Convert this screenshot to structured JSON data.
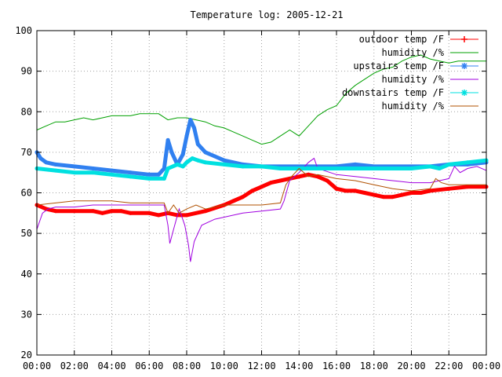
{
  "chart_data": {
    "type": "line",
    "title": "Temperature log: 2005-12-21",
    "xlabel": "",
    "ylabel": "",
    "x_ticks": [
      "00:00",
      "02:00",
      "04:00",
      "06:00",
      "08:00",
      "10:00",
      "12:00",
      "14:00",
      "16:00",
      "18:00",
      "20:00",
      "22:00",
      "00:00"
    ],
    "xlim": [
      0,
      24
    ],
    "ylim": [
      20,
      100
    ],
    "y_ticks": [
      20,
      30,
      40,
      50,
      60,
      70,
      80,
      90,
      100
    ],
    "grid": true,
    "legend_position": "top-right",
    "series": [
      {
        "name": "outdoor temp /F",
        "color": "#ff0000",
        "style": "thick-points",
        "points": [
          [
            0,
            57
          ],
          [
            0.5,
            56
          ],
          [
            1,
            55.5
          ],
          [
            2,
            55.5
          ],
          [
            3,
            55.5
          ],
          [
            3.5,
            55
          ],
          [
            4,
            55.5
          ],
          [
            4.5,
            55.5
          ],
          [
            5,
            55
          ],
          [
            6,
            55
          ],
          [
            6.5,
            54.5
          ],
          [
            7,
            55
          ],
          [
            7.5,
            54.5
          ],
          [
            8,
            54.5
          ],
          [
            9,
            55.5
          ],
          [
            10,
            57
          ],
          [
            10.5,
            58
          ],
          [
            11,
            59
          ],
          [
            11.5,
            60.5
          ],
          [
            12,
            61.5
          ],
          [
            12.5,
            62.5
          ],
          [
            13,
            63
          ],
          [
            13.5,
            63.5
          ],
          [
            14,
            64
          ],
          [
            14.5,
            64.5
          ],
          [
            15,
            64
          ],
          [
            15.5,
            63
          ],
          [
            16,
            61
          ],
          [
            16.5,
            60.5
          ],
          [
            17,
            60.5
          ],
          [
            17.5,
            60
          ],
          [
            18,
            59.5
          ],
          [
            18.5,
            59
          ],
          [
            19,
            59
          ],
          [
            19.5,
            59.5
          ],
          [
            20,
            60
          ],
          [
            20.5,
            60
          ],
          [
            21,
            60.5
          ],
          [
            22,
            61
          ],
          [
            23,
            61.5
          ],
          [
            24,
            61.5
          ]
        ]
      },
      {
        "name": "humidity /%",
        "color": "#00a000",
        "style": "line",
        "points": [
          [
            0,
            75.5
          ],
          [
            0.5,
            76.5
          ],
          [
            1,
            77.5
          ],
          [
            1.5,
            77.5
          ],
          [
            2,
            78
          ],
          [
            2.5,
            78.5
          ],
          [
            3,
            78
          ],
          [
            3.5,
            78.5
          ],
          [
            4,
            79
          ],
          [
            4.5,
            79
          ],
          [
            5,
            79
          ],
          [
            5.5,
            79.5
          ],
          [
            6,
            79.5
          ],
          [
            6.5,
            79.5
          ],
          [
            7,
            78
          ],
          [
            7.5,
            78.5
          ],
          [
            8,
            78.5
          ],
          [
            8.5,
            78
          ],
          [
            9,
            77.5
          ],
          [
            9.5,
            76.5
          ],
          [
            10,
            76
          ],
          [
            10.5,
            75
          ],
          [
            11,
            74
          ],
          [
            11.5,
            73
          ],
          [
            12,
            72
          ],
          [
            12.5,
            72.5
          ],
          [
            13,
            74
          ],
          [
            13.5,
            75.5
          ],
          [
            14,
            74
          ],
          [
            14.5,
            76.5
          ],
          [
            15,
            79
          ],
          [
            15.5,
            80.5
          ],
          [
            16,
            81.5
          ],
          [
            16.5,
            84.5
          ],
          [
            17,
            86.5
          ],
          [
            17.5,
            88
          ],
          [
            18,
            89.5
          ],
          [
            18.5,
            90.5
          ],
          [
            19,
            91
          ],
          [
            19.5,
            92.5
          ],
          [
            20,
            93.5
          ],
          [
            20.5,
            94
          ],
          [
            21,
            93
          ],
          [
            21.5,
            92.5
          ],
          [
            22,
            92
          ],
          [
            22.5,
            92.5
          ],
          [
            23,
            92.5
          ],
          [
            24,
            92.5
          ]
        ]
      },
      {
        "name": "upstairs temp /F",
        "color": "#3080f0",
        "style": "thick-points",
        "points": [
          [
            0,
            70
          ],
          [
            0.2,
            68.5
          ],
          [
            0.5,
            67.5
          ],
          [
            1,
            67
          ],
          [
            2,
            66.5
          ],
          [
            3,
            66
          ],
          [
            4,
            65.5
          ],
          [
            5,
            65
          ],
          [
            6,
            64.5
          ],
          [
            6.5,
            64.5
          ],
          [
            6.8,
            66
          ],
          [
            7,
            73
          ],
          [
            7.2,
            70
          ],
          [
            7.5,
            67
          ],
          [
            7.8,
            69.5
          ],
          [
            8,
            74
          ],
          [
            8.2,
            78
          ],
          [
            8.4,
            76
          ],
          [
            8.6,
            72
          ],
          [
            9,
            70
          ],
          [
            9.5,
            69
          ],
          [
            10,
            68
          ],
          [
            11,
            67
          ],
          [
            12,
            66.5
          ],
          [
            13,
            66.5
          ],
          [
            14,
            66.5
          ],
          [
            15,
            66.5
          ],
          [
            16,
            66.5
          ],
          [
            17,
            67
          ],
          [
            18,
            66.5
          ],
          [
            19,
            66.5
          ],
          [
            20,
            66.5
          ],
          [
            21,
            66.5
          ],
          [
            22,
            67
          ],
          [
            23,
            67
          ],
          [
            24,
            67.5
          ]
        ]
      },
      {
        "name": "humidity /%",
        "color": "#a000e0",
        "style": "line",
        "points": [
          [
            0,
            51
          ],
          [
            0.3,
            55
          ],
          [
            0.6,
            56
          ],
          [
            1,
            56.5
          ],
          [
            2,
            56.5
          ],
          [
            3,
            57
          ],
          [
            4,
            57
          ],
          [
            5,
            57
          ],
          [
            6,
            57
          ],
          [
            6.8,
            57
          ],
          [
            7,
            52
          ],
          [
            7.1,
            47.5
          ],
          [
            7.3,
            51
          ],
          [
            7.6,
            56
          ],
          [
            7.9,
            52
          ],
          [
            8.1,
            47
          ],
          [
            8.2,
            43
          ],
          [
            8.4,
            48
          ],
          [
            8.8,
            52
          ],
          [
            9.5,
            53.5
          ],
          [
            10,
            54
          ],
          [
            11,
            55
          ],
          [
            12,
            55.5
          ],
          [
            13,
            56
          ],
          [
            13.2,
            58
          ],
          [
            13.5,
            63
          ],
          [
            14,
            65
          ],
          [
            14.5,
            67.5
          ],
          [
            14.8,
            68.5
          ],
          [
            15,
            66
          ],
          [
            16,
            64.5
          ],
          [
            17,
            64
          ],
          [
            18,
            63.5
          ],
          [
            19,
            63
          ],
          [
            20,
            62.5
          ],
          [
            21,
            62.5
          ],
          [
            21.5,
            63
          ],
          [
            22,
            63.5
          ],
          [
            22.3,
            66.5
          ],
          [
            22.6,
            65
          ],
          [
            23,
            66
          ],
          [
            23.5,
            66.5
          ],
          [
            24,
            65.5
          ]
        ]
      },
      {
        "name": "downstairs temp /F",
        "color": "#00e0e0",
        "style": "thick-points",
        "points": [
          [
            0,
            66
          ],
          [
            1,
            65.5
          ],
          [
            2,
            65
          ],
          [
            3,
            65
          ],
          [
            4,
            64.5
          ],
          [
            5,
            64
          ],
          [
            6,
            63.5
          ],
          [
            6.8,
            63.5
          ],
          [
            7,
            66
          ],
          [
            7.5,
            67
          ],
          [
            7.8,
            66.5
          ],
          [
            8,
            67.5
          ],
          [
            8.3,
            68.5
          ],
          [
            8.6,
            68
          ],
          [
            9,
            67.5
          ],
          [
            10,
            67
          ],
          [
            11,
            66.5
          ],
          [
            12,
            66.5
          ],
          [
            13,
            66
          ],
          [
            14,
            66
          ],
          [
            15,
            66
          ],
          [
            16,
            66
          ],
          [
            17,
            66
          ],
          [
            18,
            66
          ],
          [
            19,
            66
          ],
          [
            20,
            66
          ],
          [
            21,
            66.5
          ],
          [
            21.5,
            66
          ],
          [
            22,
            67
          ],
          [
            23,
            67.5
          ],
          [
            24,
            68
          ]
        ]
      },
      {
        "name": "humidity /%",
        "color": "#b05000",
        "style": "line",
        "points": [
          [
            0,
            57
          ],
          [
            1,
            57.5
          ],
          [
            2,
            58
          ],
          [
            3,
            58
          ],
          [
            4,
            58
          ],
          [
            5,
            57.5
          ],
          [
            6,
            57.5
          ],
          [
            6.8,
            57.5
          ],
          [
            7,
            55
          ],
          [
            7.3,
            57
          ],
          [
            7.6,
            55
          ],
          [
            8,
            56
          ],
          [
            8.5,
            57
          ],
          [
            9,
            56
          ],
          [
            9.5,
            56.5
          ],
          [
            10,
            57
          ],
          [
            11,
            57
          ],
          [
            12,
            57
          ],
          [
            13,
            57.5
          ],
          [
            13.3,
            62
          ],
          [
            13.6,
            64
          ],
          [
            14,
            66
          ],
          [
            14.5,
            64
          ],
          [
            15,
            64.5
          ],
          [
            16,
            63.5
          ],
          [
            17,
            63
          ],
          [
            18,
            62
          ],
          [
            19,
            61
          ],
          [
            20,
            60.5
          ],
          [
            21,
            61
          ],
          [
            21.3,
            63.5
          ],
          [
            21.6,
            62.5
          ],
          [
            22,
            62
          ],
          [
            23,
            62
          ],
          [
            24,
            62
          ]
        ]
      }
    ]
  }
}
